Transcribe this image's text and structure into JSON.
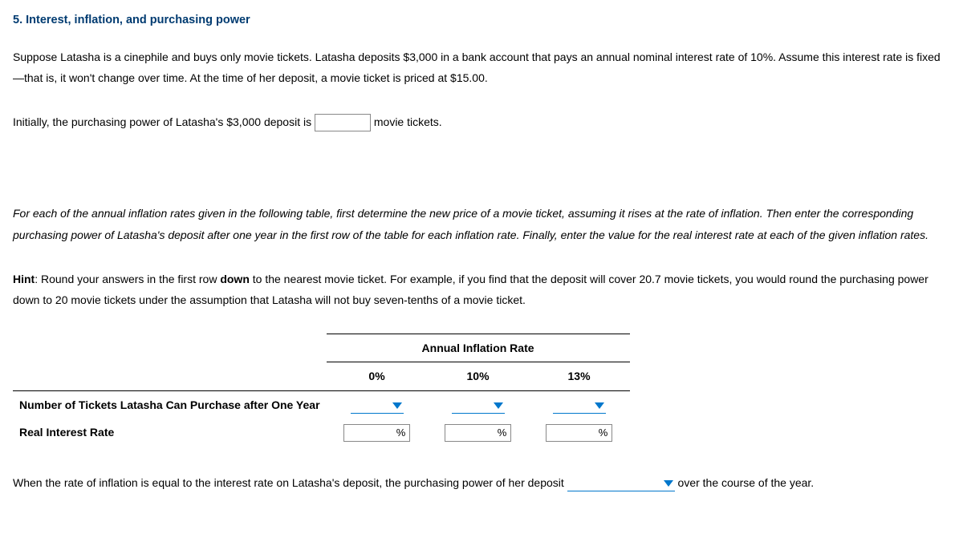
{
  "title": "5. Interest, inflation, and purchasing power",
  "intro": "Suppose Latasha is a cinephile and buys only movie tickets. Latasha deposits $3,000 in a bank account that pays an annual nominal interest rate of 10%. Assume this interest rate is fixed—that is, it won't change over time. At the time of her deposit, a movie ticket is priced at $15.00.",
  "fill1_pre": "Initially, the purchasing power of Latasha's $3,000 deposit is ",
  "fill1_post": " movie tickets.",
  "instructions_italic": "For each of the annual inflation rates given in the following table, first determine the new price of a movie ticket, assuming it rises at the rate of inflation. Then enter the corresponding purchasing power of Latasha's deposit after one year in the first row of the table for each inflation rate. Finally, enter the value for the real interest rate at each of the given inflation rates.",
  "hint_label": "Hint",
  "hint_a": ": Round your answers in the first row ",
  "hint_b_bold": "down",
  "hint_c": " to the nearest movie ticket. For example, if you find that the deposit will cover 20.7 movie tickets, you would round the purchasing power down to 20 movie tickets under the assumption that Latasha will not buy seven-tenths of a movie ticket.",
  "table": {
    "super_header": "Annual Inflation Rate",
    "cols": [
      "0%",
      "10%",
      "13%"
    ],
    "row1_label": "Number of Tickets Latasha Can Purchase after One Year",
    "row2_label": "Real Interest Rate",
    "pct_sign": "%"
  },
  "final_pre": "When the rate of inflation is equal to the interest rate on Latasha's deposit, the purchasing power of her deposit ",
  "final_post": " over the course of the year."
}
